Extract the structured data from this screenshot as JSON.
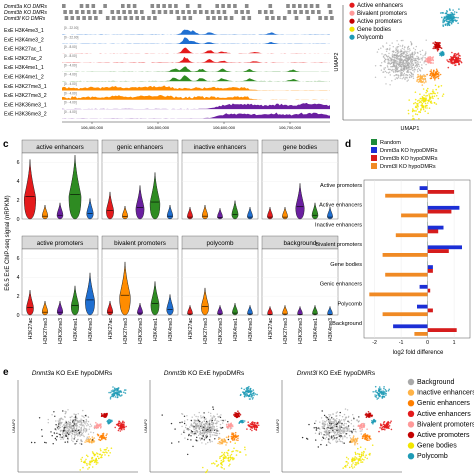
{
  "colors": {
    "active_enhancers": "#e41a1c",
    "genic_enhancers": "#ff7f00",
    "inactive_enhancers": "#ffb347",
    "active_promoters": "#c40000",
    "bivalent_promoters": "#ff9999",
    "gene_bodies": "#f2e600",
    "polycomb": "#1f9bb6",
    "background": "#a9a9a9",
    "H3K27ac": "#e41a1c",
    "H3K27me3": "#ff8c00",
    "H3K36me3": "#6a1fa0",
    "H3K4me1": "#2e8b22",
    "H3K4me3": "#1f6fd1",
    "random": "#1d8a3a",
    "dnmt3a": "#1c2fd6",
    "dnmt3b": "#d61c1c",
    "dnmt3l": "#f08a24"
  },
  "panel_a": {
    "dmr_tracks": [
      "Dnmt3a KO DMRs",
      "Dnmt3b KO DMRs",
      "Dnmt3l KO DMRs"
    ],
    "signal_tracks": [
      {
        "label": "ExE H3K4me3_1",
        "color": "H3K4me3",
        "scale": "[0 - 22.00]"
      },
      {
        "label": "ExE H3K4me3_2",
        "color": "H3K4me3",
        "scale": "[0 - 22.00]"
      },
      {
        "label": "ExE H3K27ac_1",
        "color": "H3K27ac",
        "scale": "[0 - 8.00]"
      },
      {
        "label": "ExE H3K27ac_2",
        "color": "H3K27ac",
        "scale": "[0 - 8.00]"
      },
      {
        "label": "ExE H3K4me1_1",
        "color": "H3K4me1",
        "scale": "[0 - 4.00]"
      },
      {
        "label": "ExE H3K4me1_2",
        "color": "H3K4me1",
        "scale": "[0 - 4.00]"
      },
      {
        "label": "ExE H3K27me3_1",
        "color": "H3K27me3",
        "scale": "[0 - 4.00]"
      },
      {
        "label": "ExE H3K27me3_2",
        "color": "H3K27me3",
        "scale": "[0 - 4.00]"
      },
      {
        "label": "ExE H3K36me3_1",
        "color": "H3K36me3",
        "scale": "[0 - 4.00]"
      },
      {
        "label": "ExE H3K36me3_2",
        "color": "H3K36me3",
        "scale": "[0 - 4.00]"
      }
    ],
    "x_ticks": [
      "106,400,000",
      "106,500,000",
      "106,600,000",
      "106,700,000"
    ]
  },
  "panel_b": {
    "legend": [
      "Active enhancers",
      "Bivalent promoters",
      "Active promoters",
      "Gene bodies",
      "Polycomb"
    ],
    "xlabel": "UMAP1",
    "ylabel": "UMAP2"
  },
  "panel_c": {
    "label": "c",
    "ylabel": "E6.5 ExE ChIP-seq signal (nRPKM)",
    "y_ticks": [
      "0",
      "2",
      "4",
      "6"
    ],
    "marks": [
      "H3K27ac",
      "H3K27me3",
      "H3K36me3",
      "H3K4me1",
      "H3K4me3"
    ],
    "facets": [
      {
        "title": "active enhancers",
        "medians": [
          2.4,
          0.3,
          0.4,
          2.6,
          0.6
        ]
      },
      {
        "title": "genic enhancers",
        "medians": [
          0.9,
          0.25,
          1.2,
          1.8,
          0.3
        ]
      },
      {
        "title": "inactive enhancers",
        "medians": [
          0.2,
          0.3,
          0.15,
          0.5,
          0.2
        ]
      },
      {
        "title": "gene bodies",
        "medians": [
          0.2,
          0.2,
          1.3,
          0.4,
          0.2
        ]
      },
      {
        "title": "active promoters",
        "medians": [
          0.8,
          0.3,
          0.3,
          1.0,
          1.6
        ]
      },
      {
        "title": "bivalent promoters",
        "medians": [
          0.3,
          2.1,
          0.2,
          1.2,
          0.6
        ]
      },
      {
        "title": "polycomb",
        "medians": [
          0.1,
          0.9,
          0.1,
          0.2,
          0.1
        ]
      },
      {
        "title": "background",
        "medians": [
          0.05,
          0.1,
          0.05,
          0.1,
          0.05
        ]
      }
    ]
  },
  "panel_d": {
    "label": "d",
    "legend": [
      "Random",
      "Dnmt3a KO hypoDMRs",
      "Dnmt3b KO hypoDMRs",
      "Dnmt3l KO hypoDMRs"
    ],
    "xlabel": "log2 fold difference",
    "x_ticks": [
      "-2",
      "-1",
      "0",
      "1"
    ],
    "xlim": [
      -2.4,
      1.6
    ],
    "categories": [
      "Active promoters",
      "Active enhancers",
      "Inactive enhancers",
      "Bivalent promoters",
      "Gene bodies",
      "Genic enhancers",
      "Polycomb",
      "Background"
    ]
  },
  "chart_data": {
    "type": "bar",
    "title": "",
    "xlabel": "log2 fold difference",
    "ylabel": "",
    "xlim": [
      -2.4,
      1.6
    ],
    "categories": [
      "Active promoters",
      "Active enhancers",
      "Inactive enhancers",
      "Bivalent promoters",
      "Gene bodies",
      "Genic enhancers",
      "Polycomb",
      "Background"
    ],
    "series": [
      {
        "name": "Random",
        "values": [
          0,
          0,
          0,
          0,
          0,
          0,
          0,
          0
        ]
      },
      {
        "name": "Dnmt3a KO hypoDMRs",
        "values": [
          -0.3,
          1.2,
          0.6,
          1.3,
          0.2,
          -0.3,
          -0.4,
          -1.3
        ]
      },
      {
        "name": "Dnmt3b KO hypoDMRs",
        "values": [
          1.0,
          0.9,
          0.4,
          0.8,
          0.2,
          0.1,
          0.2,
          1.1
        ]
      },
      {
        "name": "Dnmt3l KO hypoDMRs",
        "values": [
          -1.6,
          -1.0,
          -1.2,
          -1.7,
          -1.6,
          -2.2,
          -1.7,
          -0.5
        ]
      }
    ]
  },
  "panel_e": {
    "label": "e",
    "titles": [
      "Dnmt3a KO ExE hypoDMRs",
      "Dnmt3b KO ExE hypoDMRs",
      "Dnmt3l KO ExE hypoDMRs"
    ],
    "title_suffix": " KO ExE hypoDMRs",
    "title_genes": [
      "Dnmt3a",
      "Dnmt3b",
      "Dnmt3l"
    ],
    "legend": [
      "Background",
      "Inactive enhancers",
      "Genic enhancers",
      "Active enhancers",
      "Bivalent promoters",
      "Active promoters",
      "Gene bodies",
      "Polycomb"
    ],
    "ylabel": "UMAP2"
  }
}
